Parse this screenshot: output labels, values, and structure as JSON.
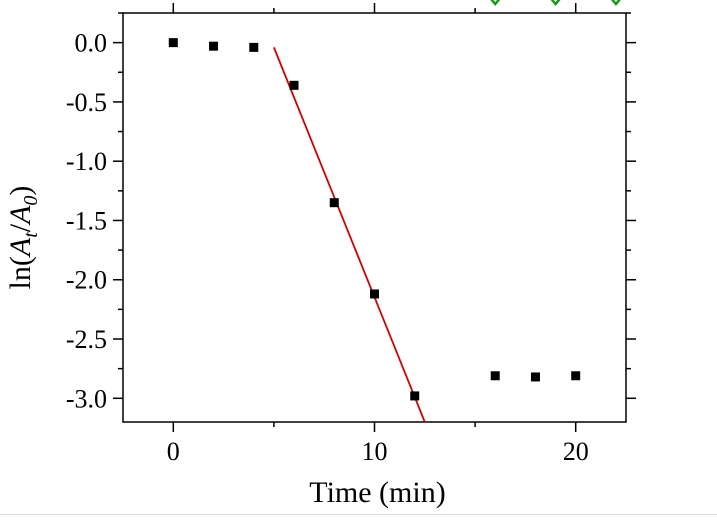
{
  "chart_data": {
    "type": "scatter",
    "xlabel": "Time (min)",
    "ylabel": {
      "prefix": "ln(",
      "var1": "A",
      "sub1": "t",
      "sep": "/",
      "var2": "A",
      "sub2": "0",
      "suffix": ")"
    },
    "xlim": [
      -2.5,
      22.5
    ],
    "ylim": [
      -3.2,
      0.25
    ],
    "xticks": [
      {
        "value": 0,
        "label": "0"
      },
      {
        "value": 10,
        "label": "10"
      },
      {
        "value": 20,
        "label": "20"
      }
    ],
    "x_minor_ticks": [
      5,
      15
    ],
    "yticks": [
      {
        "value": 0,
        "label": "0.0"
      },
      {
        "value": -0.5,
        "label": "-0.5"
      },
      {
        "value": -1.0,
        "label": "-1.0"
      },
      {
        "value": -1.5,
        "label": "-1.5"
      },
      {
        "value": -2.0,
        "label": "-2.0"
      },
      {
        "value": -2.5,
        "label": "-2.5"
      },
      {
        "value": -3.0,
        "label": "-3.0"
      }
    ],
    "y_minor_ticks": [
      0.25,
      -0.25,
      -0.75,
      -1.25,
      -1.75,
      -2.25,
      -2.75
    ],
    "grid": false,
    "series": [
      {
        "marker": "square",
        "color": "#000000",
        "x": [
          0,
          2,
          4,
          6,
          8,
          10,
          12,
          16,
          18,
          20
        ],
        "y": [
          0.0,
          -0.03,
          -0.04,
          -0.36,
          -1.35,
          -2.12,
          -2.98,
          -2.81,
          -2.82,
          -2.81
        ]
      }
    ],
    "fit_line": {
      "color": "#d40000",
      "x": [
        5.0,
        12.5
      ],
      "y": [
        -0.04,
        -3.2
      ]
    },
    "partial_markers": {
      "color": "#1a9a1a",
      "shape": "diamond",
      "x": [
        16,
        19,
        22
      ]
    }
  }
}
